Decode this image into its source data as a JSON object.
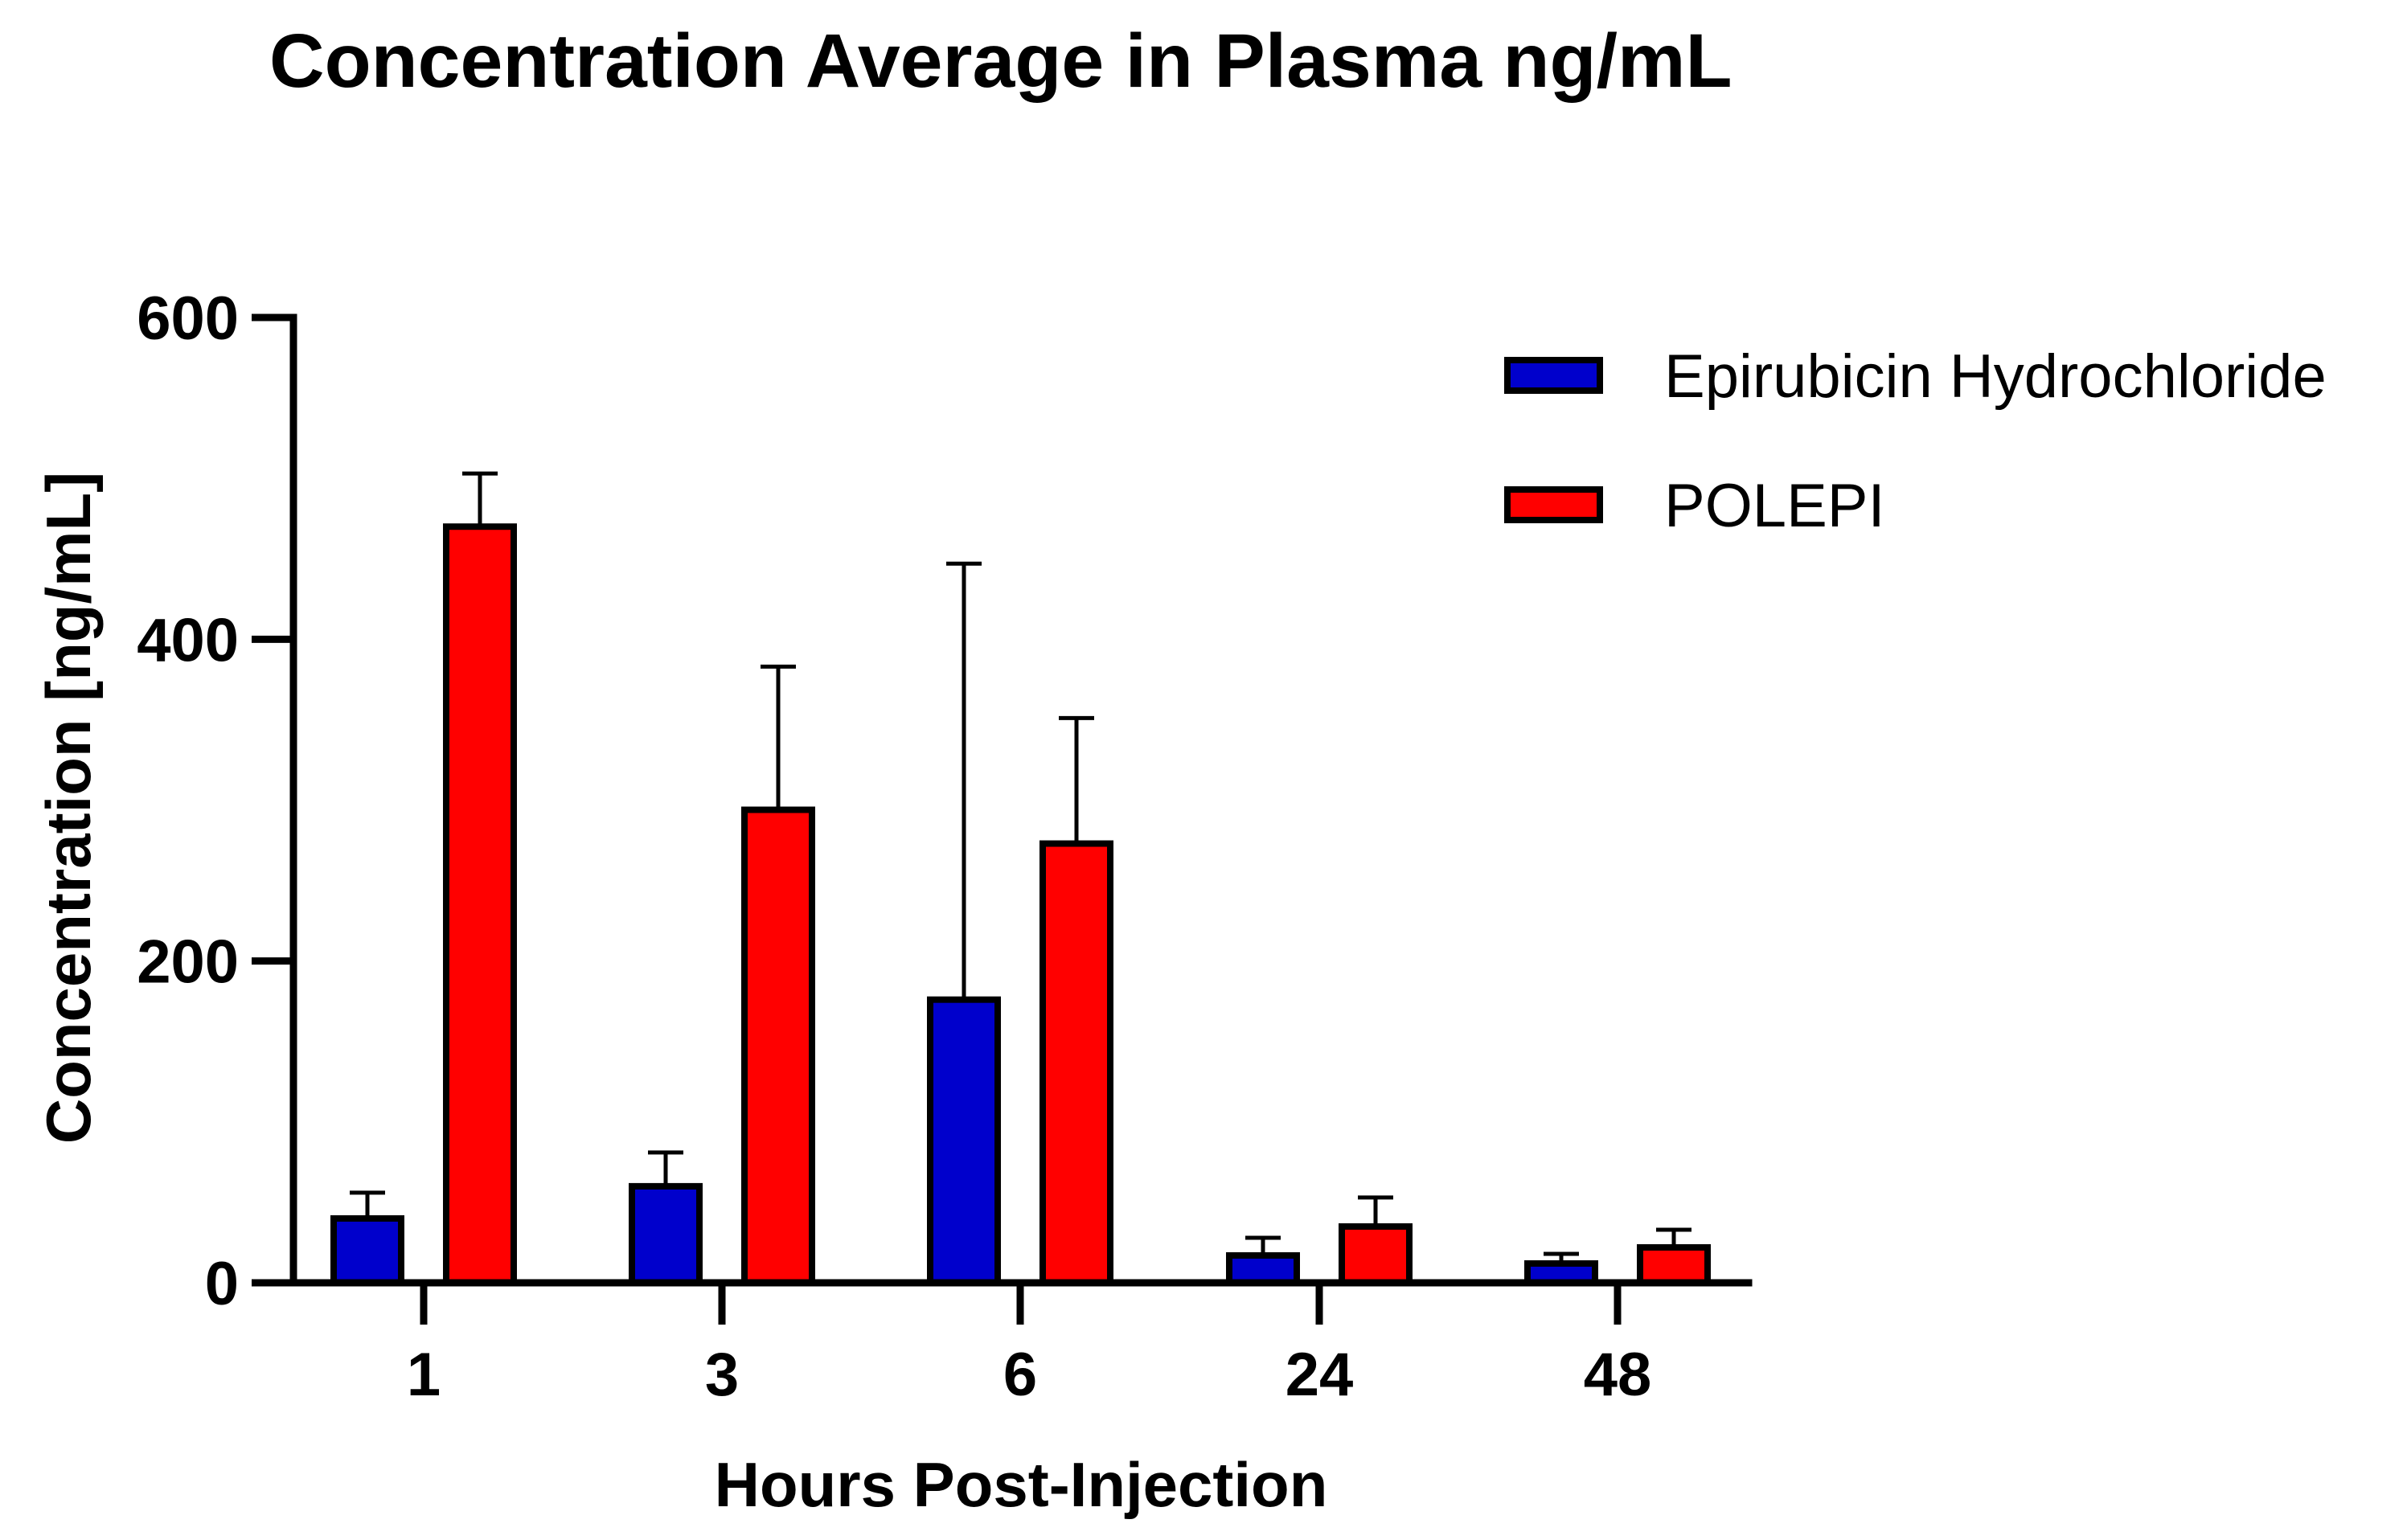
{
  "chart_data": {
    "type": "bar",
    "title": "Concentration Average in Plasma ng/mL",
    "xlabel": "Hours Post-Injection",
    "ylabel": "Concentration [ng/mL]",
    "categories": [
      "1",
      "3",
      "6",
      "24",
      "48"
    ],
    "ylim": [
      0,
      600
    ],
    "yticks": [
      0,
      200,
      400,
      600
    ],
    "grid": false,
    "legend_position": "top-right",
    "series": [
      {
        "name": "Epirubicin Hydrochloride",
        "color": "#0000cc",
        "values": [
          40,
          60,
          176,
          17,
          12
        ],
        "error_upper": [
          56,
          81,
          447,
          28,
          18
        ]
      },
      {
        "name": "POLEPI",
        "color": "#ff0000",
        "values": [
          470,
          294,
          273,
          35,
          22
        ],
        "error_upper": [
          503,
          383,
          351,
          53,
          33
        ]
      }
    ]
  }
}
